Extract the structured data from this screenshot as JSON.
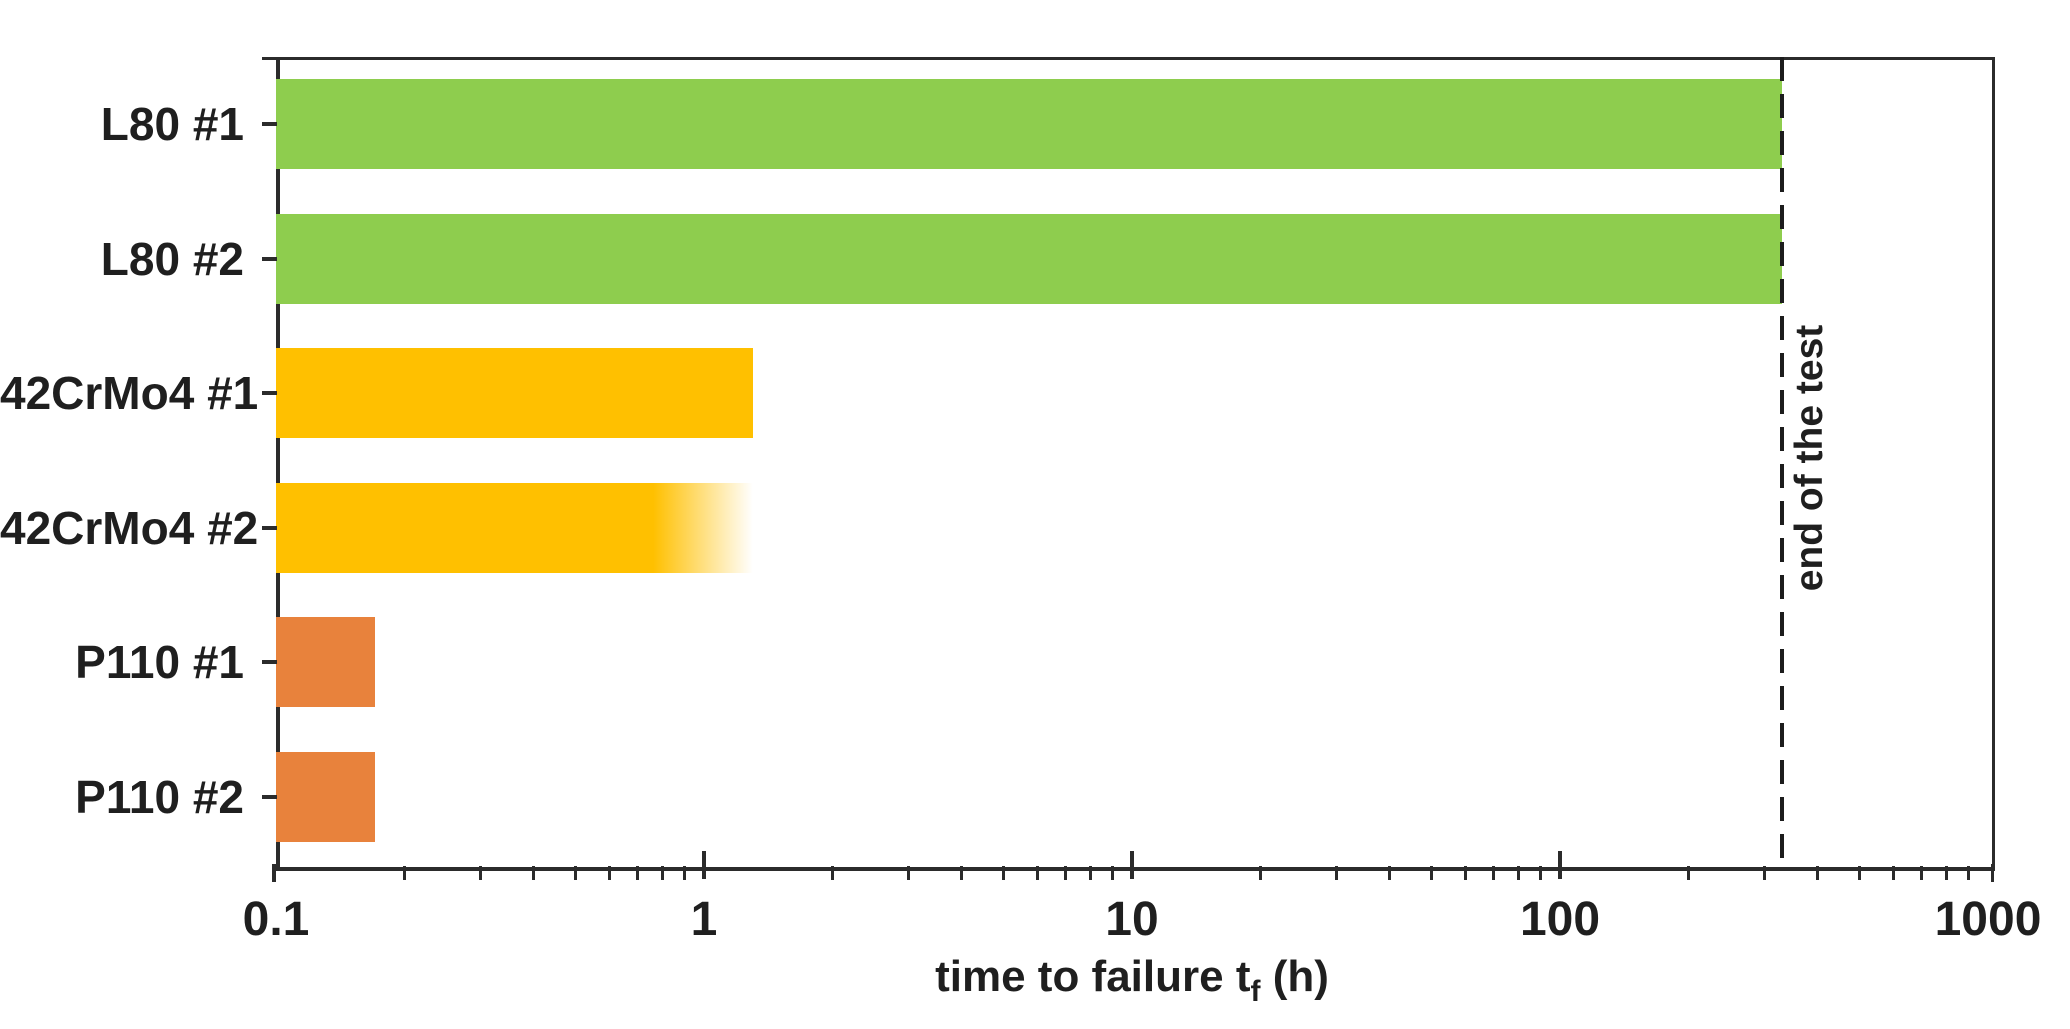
{
  "chart_data": {
    "type": "bar",
    "orientation": "horizontal",
    "title": "",
    "xlabel_parts": {
      "pre": "time to failure t",
      "sub": "f",
      "post": " (h)"
    },
    "x_scale": "log",
    "xlim": [
      0.1,
      1000
    ],
    "x_ticks": [
      0.1,
      1,
      10,
      100,
      1000
    ],
    "x_tick_labels": [
      "0.1",
      "1",
      "10",
      "100",
      "1000"
    ],
    "grid": false,
    "legend": "none",
    "categories": [
      "L80 #1",
      "L80 #2",
      "42CrMo4 #1",
      "42CrMo4 #2",
      "P110 #1",
      "P110 #2"
    ],
    "series": [
      {
        "name": "time to failure (h)",
        "values": [
          330,
          330,
          1.3,
          1.3,
          0.17,
          0.17
        ]
      }
    ],
    "bars": [
      {
        "label": "L80 #1",
        "value": 330,
        "color": "#8ECD4E",
        "reached_end_of_test": true
      },
      {
        "label": "L80 #2",
        "value": 330,
        "color": "#8ECD4E",
        "reached_end_of_test": true
      },
      {
        "label": "42CrMo4 #1",
        "value": 1.3,
        "color": "#FFC000",
        "reached_end_of_test": false
      },
      {
        "label": "42CrMo4 #2",
        "value": 1.3,
        "color": "#FFC000",
        "reached_end_of_test": false,
        "fade_from": 0.76
      },
      {
        "label": "P110 #1",
        "value": 0.17,
        "color": "#E8823C",
        "reached_end_of_test": false
      },
      {
        "label": "P110 #2",
        "value": 0.17,
        "color": "#E8823C",
        "reached_end_of_test": false
      }
    ],
    "annotation": {
      "label": "end of the test",
      "value": 330,
      "line_style": "dashed",
      "line_color": "#1c1c1c"
    },
    "colors": {
      "green": "#8ECD4E",
      "yellow": "#FFC000",
      "orange": "#E8823C",
      "axis": "#2b2b2b",
      "text": "#1f1f1f",
      "background": "#ffffff"
    }
  }
}
